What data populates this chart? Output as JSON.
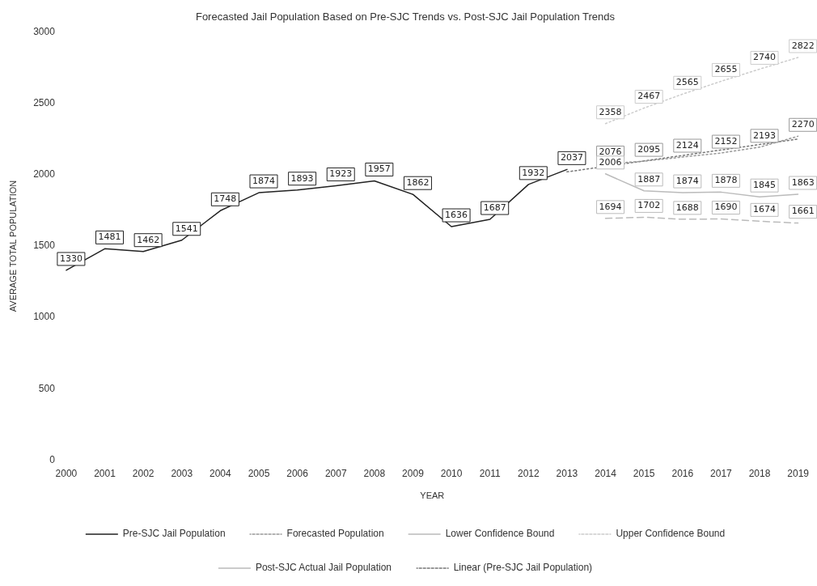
{
  "chart_data": {
    "type": "line",
    "title": "Forecasted Jail Population Based on Pre-SJC Trends vs. Post-SJC Jail Population Trends",
    "xlabel": "YEAR",
    "ylabel": "AVERAGE TOTAL POPULATION",
    "categories": [
      "2000",
      "2001",
      "2002",
      "2003",
      "2004",
      "2005",
      "2006",
      "2007",
      "2008",
      "2009",
      "2010",
      "2011",
      "2012",
      "2013",
      "2014",
      "2015",
      "2016",
      "2017",
      "2018",
      "2019"
    ],
    "ylim": [
      0,
      3000
    ],
    "yticks": [
      0,
      500,
      1000,
      1500,
      2000,
      2500,
      3000
    ],
    "grid": false,
    "legend": "bottom",
    "marker": "none",
    "data_labels": true,
    "series": [
      {
        "name": "Pre-SJC Jail Population",
        "color": "#222222",
        "line_style": "solid",
        "values": [
          1330,
          1481,
          1462,
          1541,
          1748,
          1874,
          1893,
          1923,
          1957,
          1862,
          1636,
          1687,
          1932,
          2037,
          null,
          null,
          null,
          null,
          null,
          null
        ]
      },
      {
        "name": "Forecasted Population",
        "color": "#999999",
        "line_style": "dotted",
        "values": [
          null,
          null,
          null,
          null,
          null,
          null,
          null,
          null,
          null,
          null,
          null,
          null,
          null,
          null,
          2076,
          2095,
          2124,
          2152,
          2193,
          2270
        ]
      },
      {
        "name": "Lower Confidence Bound",
        "color": "#bbbbbb",
        "line_style": "dashed",
        "values": [
          null,
          null,
          null,
          null,
          null,
          null,
          null,
          null,
          null,
          null,
          null,
          null,
          null,
          null,
          1694,
          1702,
          1688,
          1690,
          1674,
          1661
        ]
      },
      {
        "name": "Upper Confidence Bound",
        "color": "#cccccc",
        "line_style": "dotted",
        "values": [
          null,
          null,
          null,
          null,
          null,
          null,
          null,
          null,
          null,
          null,
          null,
          null,
          null,
          null,
          2358,
          2467,
          2565,
          2655,
          2740,
          2822
        ]
      },
      {
        "name": "Post-SJC Actual Jail Population",
        "color": "#bbbbbb",
        "line_style": "solid",
        "values": [
          null,
          null,
          null,
          null,
          null,
          null,
          null,
          null,
          null,
          null,
          null,
          null,
          null,
          null,
          2006,
          1887,
          1874,
          1878,
          1845,
          1863
        ]
      },
      {
        "name": "Linear (Pre-SJC Jail Population)",
        "color": "#777777",
        "line_style": "dotted",
        "value_labels": [
          null,
          null,
          null,
          null,
          null,
          null,
          null,
          null,
          null,
          null,
          null,
          null,
          null,
          null,
          null,
          null,
          null,
          null,
          null,
          null
        ],
        "values": [
          null,
          null,
          null,
          null,
          null,
          null,
          null,
          null,
          null,
          null,
          null,
          null,
          null,
          2020,
          null,
          null,
          null,
          null,
          null,
          2250
        ]
      }
    ]
  }
}
